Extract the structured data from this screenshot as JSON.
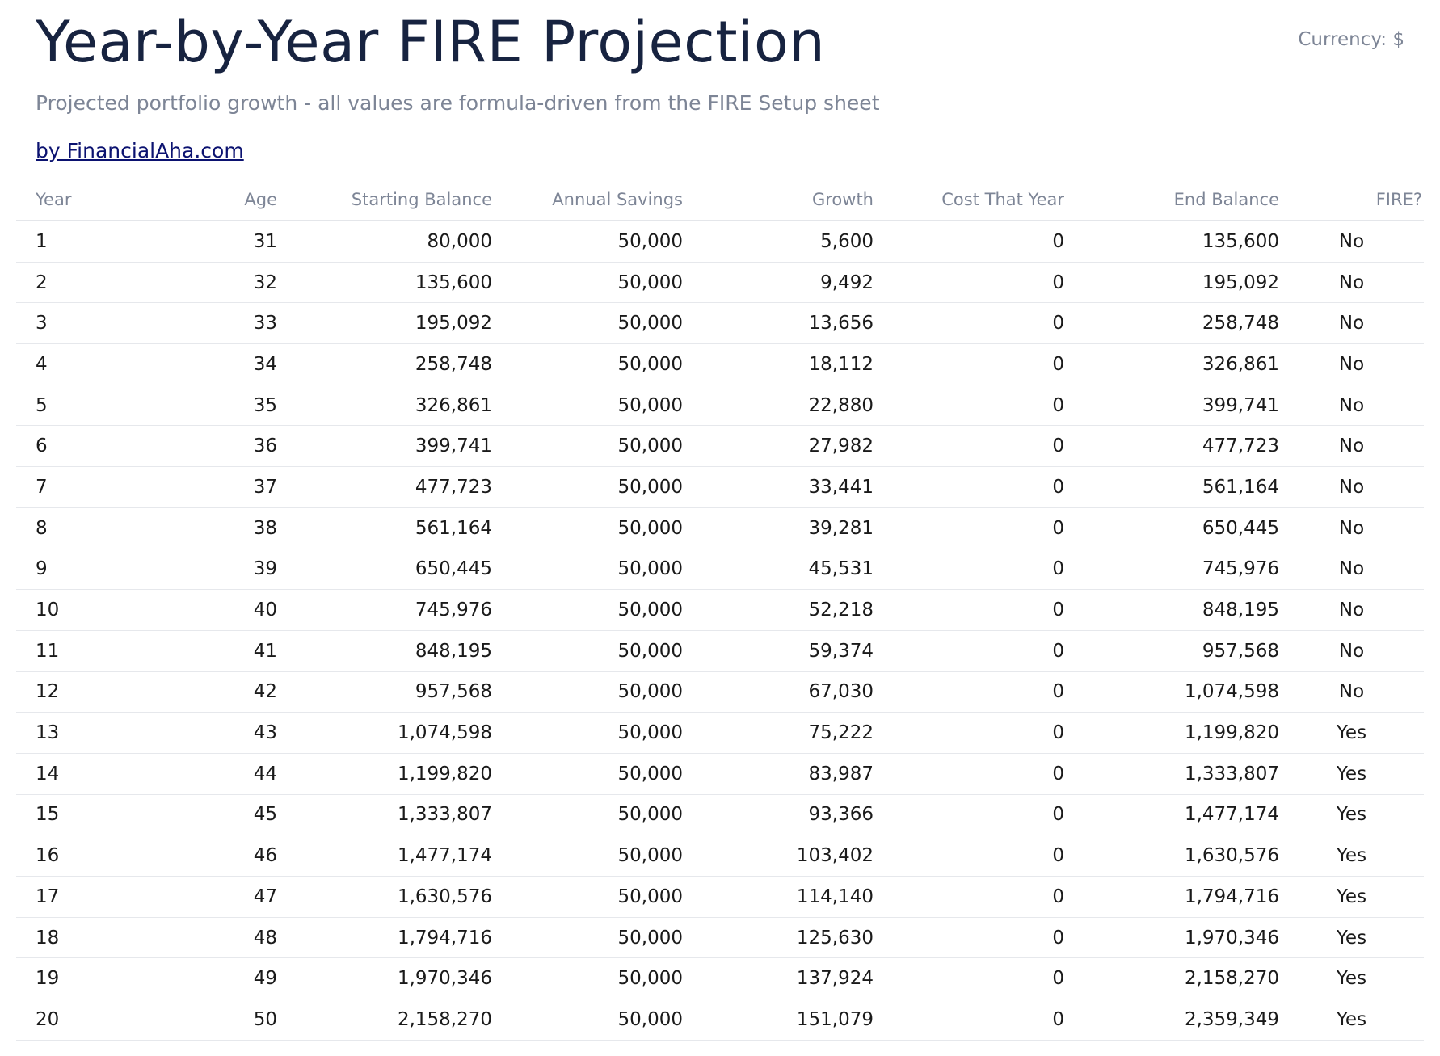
{
  "header": {
    "title": "Year-by-Year FIRE Projection",
    "currency_label": "Currency: $",
    "subtitle": "Projected portfolio growth - all values are formula-driven from the FIRE Setup sheet",
    "brand_link": "by FinancialAha.com"
  },
  "table": {
    "columns": [
      "Year",
      "Age",
      "Starting Balance",
      "Annual Savings",
      "Growth",
      "Cost That Year",
      "End Balance",
      "FIRE?"
    ],
    "rows": [
      [
        "1",
        "31",
        "80,000",
        "50,000",
        "5,600",
        "0",
        "135,600",
        "No"
      ],
      [
        "2",
        "32",
        "135,600",
        "50,000",
        "9,492",
        "0",
        "195,092",
        "No"
      ],
      [
        "3",
        "33",
        "195,092",
        "50,000",
        "13,656",
        "0",
        "258,748",
        "No"
      ],
      [
        "4",
        "34",
        "258,748",
        "50,000",
        "18,112",
        "0",
        "326,861",
        "No"
      ],
      [
        "5",
        "35",
        "326,861",
        "50,000",
        "22,880",
        "0",
        "399,741",
        "No"
      ],
      [
        "6",
        "36",
        "399,741",
        "50,000",
        "27,982",
        "0",
        "477,723",
        "No"
      ],
      [
        "7",
        "37",
        "477,723",
        "50,000",
        "33,441",
        "0",
        "561,164",
        "No"
      ],
      [
        "8",
        "38",
        "561,164",
        "50,000",
        "39,281",
        "0",
        "650,445",
        "No"
      ],
      [
        "9",
        "39",
        "650,445",
        "50,000",
        "45,531",
        "0",
        "745,976",
        "No"
      ],
      [
        "10",
        "40",
        "745,976",
        "50,000",
        "52,218",
        "0",
        "848,195",
        "No"
      ],
      [
        "11",
        "41",
        "848,195",
        "50,000",
        "59,374",
        "0",
        "957,568",
        "No"
      ],
      [
        "12",
        "42",
        "957,568",
        "50,000",
        "67,030",
        "0",
        "1,074,598",
        "No"
      ],
      [
        "13",
        "43",
        "1,074,598",
        "50,000",
        "75,222",
        "0",
        "1,199,820",
        "Yes"
      ],
      [
        "14",
        "44",
        "1,199,820",
        "50,000",
        "83,987",
        "0",
        "1,333,807",
        "Yes"
      ],
      [
        "15",
        "45",
        "1,333,807",
        "50,000",
        "93,366",
        "0",
        "1,477,174",
        "Yes"
      ],
      [
        "16",
        "46",
        "1,477,174",
        "50,000",
        "103,402",
        "0",
        "1,630,576",
        "Yes"
      ],
      [
        "17",
        "47",
        "1,630,576",
        "50,000",
        "114,140",
        "0",
        "1,794,716",
        "Yes"
      ],
      [
        "18",
        "48",
        "1,794,716",
        "50,000",
        "125,630",
        "0",
        "1,970,346",
        "Yes"
      ],
      [
        "19",
        "49",
        "1,970,346",
        "50,000",
        "137,924",
        "0",
        "2,158,270",
        "Yes"
      ],
      [
        "20",
        "50",
        "2,158,270",
        "50,000",
        "151,079",
        "0",
        "2,359,349",
        "Yes"
      ]
    ]
  }
}
